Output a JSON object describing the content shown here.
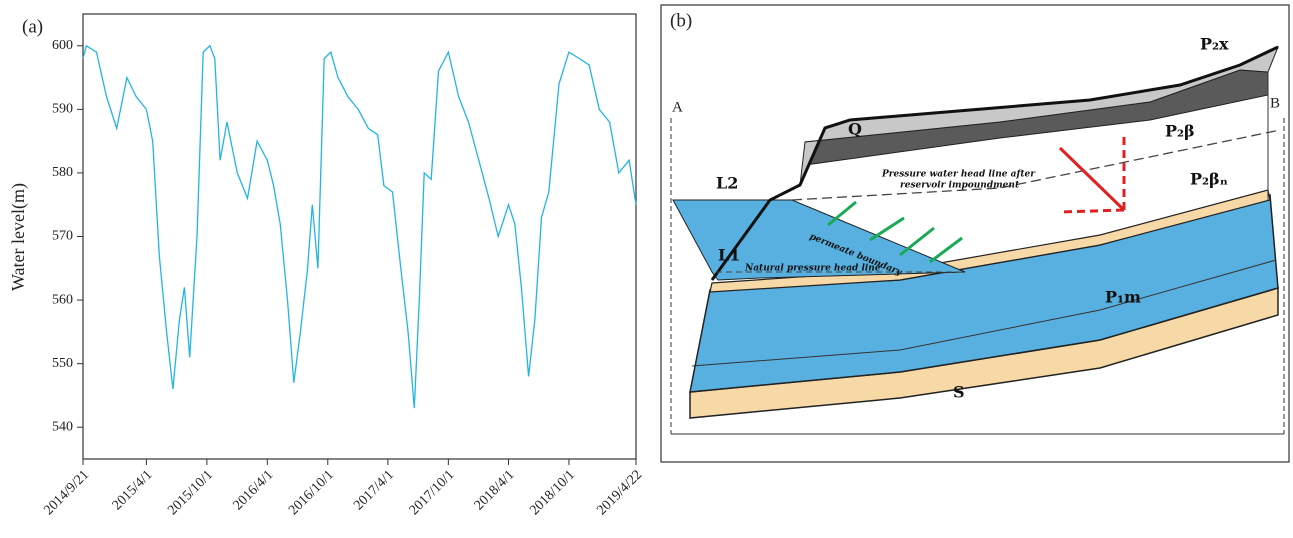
{
  "chart_data": {
    "type": "line",
    "label": "(a)",
    "y_label": "Water level(m)",
    "color": "#22b4e6",
    "x": [
      "2014/9/21",
      "2014/10/1",
      "2014/11/1",
      "2014/12/1",
      "2015/1/1",
      "2015/2/1",
      "2015/3/1",
      "2015/4/1",
      "2015/4/20",
      "2015/5/10",
      "2015/6/1",
      "2015/6/20",
      "2015/7/10",
      "2015/7/25",
      "2015/8/10",
      "2015/9/1",
      "2015/9/20",
      "2015/10/10",
      "2015/10/25",
      "2015/11/10",
      "2015/12/1",
      "2016/1/1",
      "2016/2/1",
      "2016/3/1",
      "2016/4/1",
      "2016/4/20",
      "2016/5/10",
      "2016/6/1",
      "2016/6/20",
      "2016/7/10",
      "2016/8/1",
      "2016/8/15",
      "2016/9/1",
      "2016/9/20",
      "2016/10/10",
      "2016/11/1",
      "2016/12/1",
      "2017/1/1",
      "2017/2/1",
      "2017/3/1",
      "2017/3/20",
      "2017/4/15",
      "2017/5/10",
      "2017/6/1",
      "2017/6/20",
      "2017/7/5",
      "2017/7/20",
      "2017/8/10",
      "2017/9/1",
      "2017/10/1",
      "2017/11/1",
      "2017/12/1",
      "2018/1/1",
      "2018/2/1",
      "2018/3/1",
      "2018/4/1",
      "2018/4/20",
      "2018/5/10",
      "2018/6/1",
      "2018/6/20",
      "2018/7/10",
      "2018/8/1",
      "2018/9/1",
      "2018/10/1",
      "2018/11/1",
      "2018/12/1",
      "2019/1/1",
      "2019/2/1",
      "2019/3/1",
      "2019/4/1",
      "2019/4/22"
    ],
    "values": [
      598,
      600,
      599,
      592,
      587,
      595,
      592,
      590,
      585,
      567,
      555,
      546,
      557,
      562,
      551,
      570,
      599,
      600,
      598,
      582,
      588,
      580,
      576,
      585,
      582,
      578,
      572,
      560,
      547,
      555,
      565,
      575,
      565,
      598,
      599,
      595,
      592,
      590,
      587,
      586,
      578,
      577,
      565,
      555,
      543,
      560,
      580,
      579,
      596,
      599,
      592,
      588,
      582,
      576,
      570,
      575,
      572,
      562,
      548,
      557,
      573,
      577,
      594,
      599,
      598,
      597,
      590,
      588,
      580,
      582,
      575
    ],
    "xlim": [
      "2014/9/21",
      "2019/4/22"
    ],
    "xticks": [
      "2014/9/21",
      "2015/4/1",
      "2015/10/1",
      "2016/4/1",
      "2016/10/1",
      "2017/4/1",
      "2017/10/1",
      "2018/4/1",
      "2018/10/1",
      "2019/4/22"
    ],
    "ylim": [
      535,
      605
    ],
    "yticks": [
      540,
      550,
      560,
      570,
      580,
      590,
      600
    ]
  },
  "diagram": {
    "panel_label": "(b)",
    "section_ends": [
      "A",
      "B"
    ],
    "strata": [
      "P₂x",
      "Q",
      "P₂β",
      "P₂βₙ",
      "P₁m",
      "S"
    ],
    "water_levels": [
      "L2",
      "L1"
    ],
    "lines": [
      "Pressure water head line after",
      "reservoir impoundment",
      "permeate boundary",
      "Natural pressure head line"
    ]
  }
}
